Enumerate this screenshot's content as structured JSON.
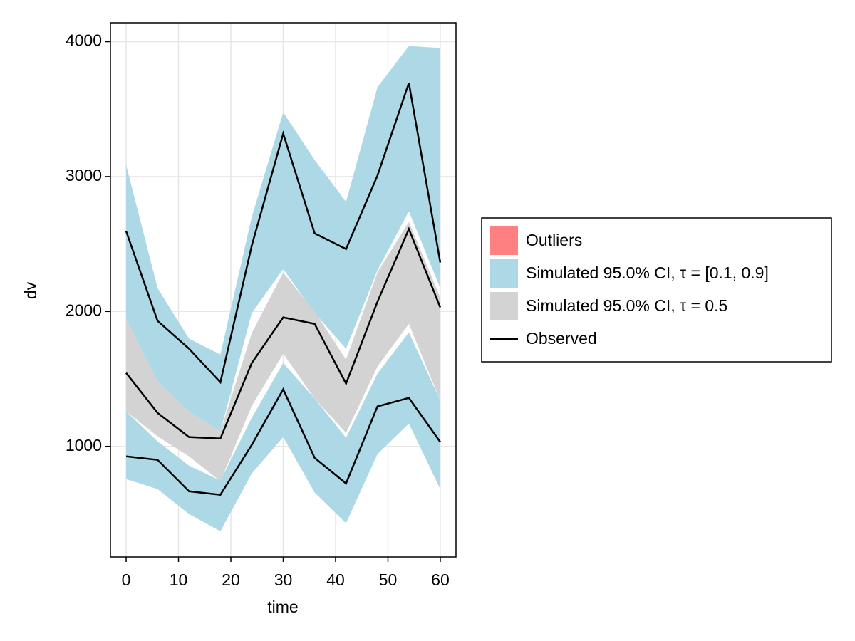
{
  "chart_data": {
    "type": "line",
    "x": [
      0,
      6,
      12,
      18,
      24,
      30,
      36,
      42,
      48,
      54,
      60
    ],
    "xlabel": "time",
    "ylabel": "dv",
    "xlim": [
      -3,
      63
    ],
    "ylim": [
      180,
      4140
    ],
    "xticks": [
      0,
      10,
      20,
      30,
      40,
      50,
      60
    ],
    "yticks": [
      1000,
      2000,
      3000,
      4000
    ],
    "grid": true,
    "legend": "right",
    "series": [
      {
        "name": "Outliers",
        "color": "#ff8080"
      },
      {
        "name": "Simulated 95.0% CI, τ = [0.1, 0.9]",
        "color": "#add8e6",
        "bands": [
          {
            "upper": [
              3086,
              2173,
              1798,
              1681,
              2701,
              3477,
              3123,
              2812,
              3662,
              3968,
              3953
            ],
            "lower": [
              1945,
              1481,
              1259,
              1111,
              1988,
              2315,
              1988,
              1724,
              2305,
              2743,
              2173
            ]
          },
          {
            "upper": [
              1259,
              1037,
              857,
              746,
              1211,
              1618,
              1354,
              1063,
              1539,
              1845,
              1338
            ],
            "lower": [
              757,
              683,
              498,
              371,
              799,
              1069,
              657,
              430,
              942,
              1169,
              683
            ]
          }
        ]
      },
      {
        "name": "Simulated 95.0% CI, τ = 0.5",
        "color": "#d3d3d3",
        "bands": [
          {
            "upper": [
              1945,
              1481,
              1259,
              1111,
              1840,
              2289,
              1998,
              1644,
              2289,
              2664,
              2104
            ],
            "lower": [
              1259,
              1074,
              926,
              741,
              1301,
              1687,
              1354,
              1100,
              1592,
              1908,
              1338
            ]
          }
        ]
      },
      {
        "name": "Observed",
        "color": "#000000",
        "lines": [
          [
            2595,
            1930,
            1724,
            1475,
            2489,
            3319,
            2579,
            2463,
            3007,
            3694,
            2363
          ],
          [
            1544,
            1248,
            1069,
            1058,
            1618,
            1956,
            1908,
            1465,
            2072,
            2611,
            2030
          ],
          [
            926,
            900,
            667,
            641,
            1011,
            1423,
            915,
            725,
            1296,
            1359,
            1032
          ]
        ]
      }
    ]
  }
}
